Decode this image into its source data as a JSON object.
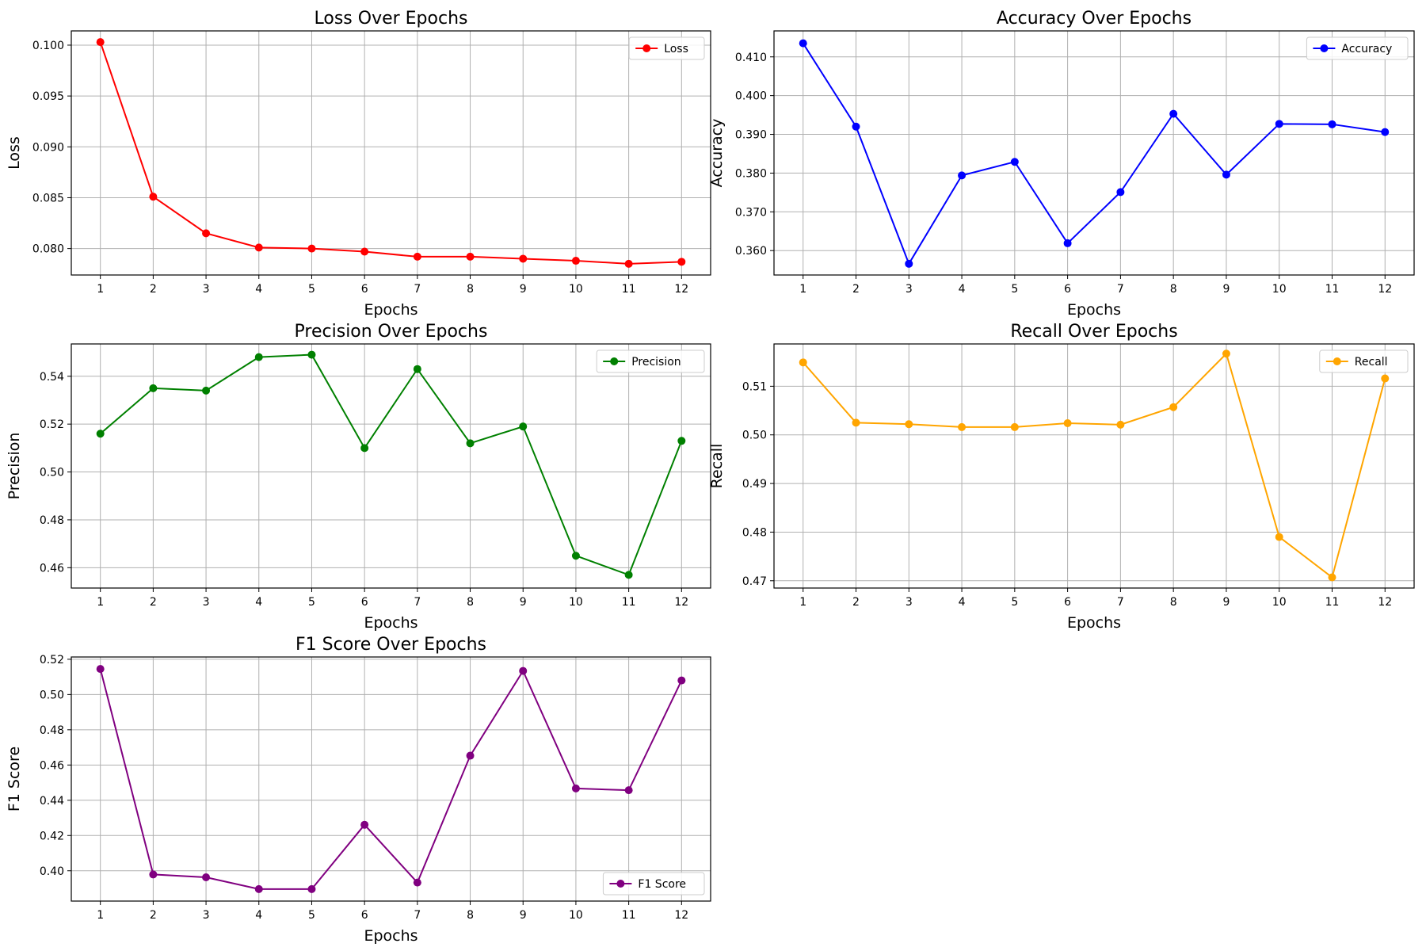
{
  "chart_data": [
    {
      "type": "line",
      "title": "Loss Over Epochs",
      "xlabel": "Epochs",
      "ylabel": "Loss",
      "x": [
        1,
        2,
        3,
        4,
        5,
        6,
        7,
        8,
        9,
        10,
        11,
        12
      ],
      "series": [
        {
          "name": "Loss",
          "color": "#ff0000",
          "values": [
            0.1003,
            0.0851,
            0.0815,
            0.0801,
            0.08,
            0.0797,
            0.0792,
            0.0792,
            0.079,
            0.0788,
            0.0785,
            0.0787
          ]
        }
      ],
      "ylim": [
        0.0774,
        0.1014
      ],
      "yticks": [
        0.08,
        0.085,
        0.09,
        0.095,
        0.1
      ],
      "ytick_labels": [
        "0.080",
        "0.085",
        "0.090",
        "0.095",
        "0.100"
      ],
      "legend": "upper-right",
      "grid": true
    },
    {
      "type": "line",
      "title": "Accuracy Over Epochs",
      "xlabel": "Epochs",
      "ylabel": "Accuracy",
      "x": [
        1,
        2,
        3,
        4,
        5,
        6,
        7,
        8,
        9,
        10,
        11,
        12
      ],
      "series": [
        {
          "name": "Accuracy",
          "color": "#0000ff",
          "values": [
            0.4135,
            0.392,
            0.3566,
            0.3794,
            0.3829,
            0.3619,
            0.3751,
            0.3953,
            0.3796,
            0.3927,
            0.3926,
            0.3906
          ]
        }
      ],
      "ylim": [
        0.3537,
        0.4167
      ],
      "yticks": [
        0.36,
        0.37,
        0.38,
        0.39,
        0.4,
        0.41
      ],
      "ytick_labels": [
        "0.360",
        "0.370",
        "0.380",
        "0.390",
        "0.400",
        "0.410"
      ],
      "legend": "upper-right",
      "grid": true
    },
    {
      "type": "line",
      "title": "Precision Over Epochs",
      "xlabel": "Epochs",
      "ylabel": "Precision",
      "x": [
        1,
        2,
        3,
        4,
        5,
        6,
        7,
        8,
        9,
        10,
        11,
        12
      ],
      "series": [
        {
          "name": "Precision",
          "color": "#008000",
          "values": [
            0.516,
            0.535,
            0.534,
            0.548,
            0.549,
            0.51,
            0.543,
            0.512,
            0.519,
            0.465,
            0.457,
            0.513
          ]
        }
      ],
      "ylim": [
        0.4515,
        0.5535
      ],
      "yticks": [
        0.46,
        0.48,
        0.5,
        0.52,
        0.54
      ],
      "ytick_labels": [
        "0.46",
        "0.48",
        "0.50",
        "0.52",
        "0.54"
      ],
      "legend": "upper-right",
      "grid": true
    },
    {
      "type": "line",
      "title": "Recall Over Epochs",
      "xlabel": "Epochs",
      "ylabel": "Recall",
      "x": [
        1,
        2,
        3,
        4,
        5,
        6,
        7,
        8,
        9,
        10,
        11,
        12
      ],
      "series": [
        {
          "name": "Recall",
          "color": "#ffa500",
          "values": [
            0.5149,
            0.5025,
            0.5022,
            0.5016,
            0.5016,
            0.5024,
            0.5021,
            0.5057,
            0.5167,
            0.479,
            0.4707,
            0.5116
          ]
        }
      ],
      "ylim": [
        0.4685,
        0.5187
      ],
      "yticks": [
        0.47,
        0.48,
        0.49,
        0.5,
        0.51
      ],
      "ytick_labels": [
        "0.47",
        "0.48",
        "0.49",
        "0.50",
        "0.51"
      ],
      "legend": "upper-right",
      "grid": true
    },
    {
      "type": "line",
      "title": "F1 Score Over Epochs",
      "xlabel": "Epochs",
      "ylabel": "F1 Score",
      "x": [
        1,
        2,
        3,
        4,
        5,
        6,
        7,
        8,
        9,
        10,
        11,
        12
      ],
      "series": [
        {
          "name": "F1 Score",
          "color": "#800080",
          "values": [
            0.5145,
            0.3979,
            0.3963,
            0.3896,
            0.3896,
            0.4261,
            0.3933,
            0.4653,
            0.5134,
            0.4467,
            0.4457,
            0.508
          ]
        }
      ],
      "ylim": [
        0.3828,
        0.5213
      ],
      "yticks": [
        0.4,
        0.42,
        0.44,
        0.46,
        0.48,
        0.5,
        0.52
      ],
      "ytick_labels": [
        "0.40",
        "0.42",
        "0.44",
        "0.46",
        "0.48",
        "0.50",
        "0.52"
      ],
      "legend": "lower-right",
      "grid": true
    }
  ]
}
